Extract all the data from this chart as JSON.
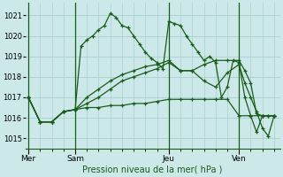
{
  "background_color": "#cce8e8",
  "grid_color": "#aacfcf",
  "line_color": "#1a5c1a",
  "ylabel": "Pression niveau de la mer( hPa )",
  "ylim": [
    1014.5,
    1021.6
  ],
  "yticks": [
    1015,
    1016,
    1017,
    1018,
    1019,
    1020,
    1021
  ],
  "ytick_fontsize": 6,
  "xlabel_fontsize": 7,
  "xtick_labels": [
    "Mer",
    "Sam",
    "Jeu",
    "Ven"
  ],
  "xtick_positions": [
    0,
    8,
    24,
    36
  ],
  "vline_positions": [
    0,
    8,
    24,
    36
  ],
  "minor_xtick_positions": [
    2,
    4,
    6,
    10,
    12,
    14,
    16,
    18,
    20,
    22,
    26,
    28,
    30,
    32,
    34,
    38,
    40,
    42
  ],
  "series": [
    {
      "x": [
        0,
        2,
        4,
        6,
        8,
        9,
        10,
        11,
        12,
        13,
        14,
        15,
        16,
        17,
        18,
        19,
        20,
        21,
        22,
        23,
        24,
        25,
        26,
        27,
        28,
        29,
        30,
        31,
        32,
        33,
        34,
        35,
        36,
        37,
        38,
        39,
        40,
        41,
        42
      ],
      "y": [
        1017.0,
        1015.8,
        1015.8,
        1016.3,
        1016.4,
        1019.5,
        1019.8,
        1020.0,
        1020.3,
        1020.5,
        1021.1,
        1020.9,
        1020.5,
        1020.4,
        1020.0,
        1019.6,
        1019.2,
        1018.9,
        1018.7,
        1018.4,
        1020.7,
        1020.6,
        1020.5,
        1020.0,
        1019.6,
        1019.2,
        1018.8,
        1019.0,
        1018.7,
        1017.0,
        1017.5,
        1018.8,
        1018.7,
        1017.0,
        1016.1,
        1015.3,
        1016.1,
        1016.1,
        1016.1
      ]
    },
    {
      "x": [
        0,
        2,
        4,
        6,
        8,
        10,
        12,
        14,
        16,
        18,
        20,
        22,
        24,
        26,
        28,
        30,
        32,
        34,
        36,
        38,
        40,
        42
      ],
      "y": [
        1017.0,
        1015.8,
        1015.8,
        1016.3,
        1016.4,
        1016.5,
        1016.5,
        1016.6,
        1016.6,
        1016.7,
        1016.7,
        1016.8,
        1016.9,
        1016.9,
        1016.9,
        1016.9,
        1016.9,
        1016.9,
        1016.1,
        1016.1,
        1016.1,
        1016.1
      ]
    },
    {
      "x": [
        0,
        2,
        4,
        6,
        8,
        10,
        12,
        14,
        16,
        18,
        20,
        22,
        24,
        26,
        28,
        30,
        32,
        34,
        36,
        37,
        38,
        39,
        40,
        41,
        42
      ],
      "y": [
        1017.0,
        1015.8,
        1015.8,
        1016.3,
        1016.4,
        1016.7,
        1017.0,
        1017.4,
        1017.8,
        1018.0,
        1018.2,
        1018.4,
        1018.7,
        1018.3,
        1018.3,
        1017.8,
        1017.5,
        1018.2,
        1018.6,
        1017.7,
        1017.0,
        1016.3,
        1015.5,
        1015.1,
        1016.1
      ]
    },
    {
      "x": [
        0,
        2,
        4,
        6,
        8,
        10,
        12,
        14,
        16,
        18,
        20,
        22,
        24,
        26,
        28,
        30,
        32,
        34,
        36,
        37,
        38,
        39,
        40,
        41,
        42
      ],
      "y": [
        1017.0,
        1015.8,
        1015.8,
        1016.3,
        1016.4,
        1017.0,
        1017.4,
        1017.8,
        1018.1,
        1018.3,
        1018.5,
        1018.6,
        1018.8,
        1018.3,
        1018.3,
        1018.6,
        1018.8,
        1018.8,
        1018.8,
        1018.3,
        1017.7,
        1016.2,
        1016.1,
        1016.1,
        1016.1
      ]
    }
  ]
}
